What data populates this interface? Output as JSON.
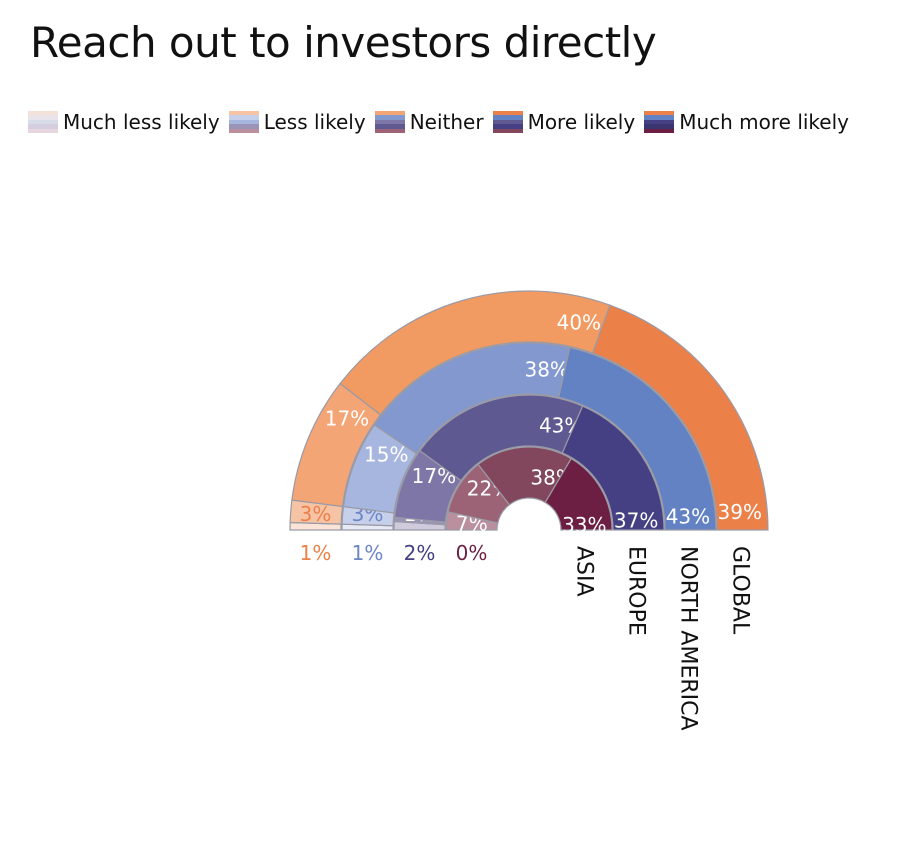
{
  "title": "Reach out to investors directly",
  "chart_data": {
    "type": "nested-semicircle",
    "legend": [
      "Much less likely",
      "Less likely",
      "Neither",
      "More likely",
      "Much more likely"
    ],
    "rings": [
      {
        "name": "GLOBAL",
        "values": [
          1,
          3,
          17,
          40,
          39
        ],
        "labels": [
          "1%",
          "3%",
          "17%",
          "40%",
          "39%"
        ],
        "colors": [
          "#fbe3d6",
          "#f6c4a5",
          "#f3a576",
          "#f19b63",
          "#ec8049"
        ],
        "tick_color": "#ec8049"
      },
      {
        "name": "NORTH AMERICA",
        "values": [
          1,
          3,
          15,
          38,
          43
        ],
        "labels": [
          "1%",
          "3%",
          "15%",
          "38%",
          "43%"
        ],
        "colors": [
          "#e5eaf4",
          "#c7d0ea",
          "#a7b6df",
          "#8398cf",
          "#6382c3"
        ],
        "tick_color": "#6b86c4"
      },
      {
        "name": "EUROPE",
        "values": [
          2,
          1,
          17,
          43,
          37
        ],
        "labels": [
          "2%",
          "1%",
          "17%",
          "43%",
          "37%"
        ],
        "colors": [
          "#cfcbdd",
          "#9a95b8",
          "#7f76a8",
          "#5f5992",
          "#454083"
        ],
        "tick_color": "#454083"
      },
      {
        "name": "ASIA",
        "values": [
          0,
          7,
          22,
          38,
          33
        ],
        "labels": [
          "0%",
          "7%",
          "22%",
          "38%",
          "33%"
        ],
        "colors": [
          "#dcc6cf",
          "#ba909f",
          "#9c6275",
          "#82475d",
          "#6c1f43"
        ],
        "tick_color": "#6c1f43"
      }
    ],
    "legend_colors": [
      [
        "#f4e2d8",
        "#e9e3ea",
        "#d8dbe8",
        "#d4cee0",
        "#e6d7de"
      ],
      [
        "#f6c4a5",
        "#c7d0ea",
        "#a7b6df",
        "#9a95b8",
        "#ba909f"
      ],
      [
        "#f3a576",
        "#8398cf",
        "#7f76a8",
        "#5f5992",
        "#9c6275"
      ],
      [
        "#ec8049",
        "#6382c3",
        "#5f5992",
        "#454083",
        "#82475d"
      ],
      [
        "#ec8049",
        "#6382c3",
        "#454083",
        "#3a356f",
        "#6c1f43"
      ]
    ]
  }
}
